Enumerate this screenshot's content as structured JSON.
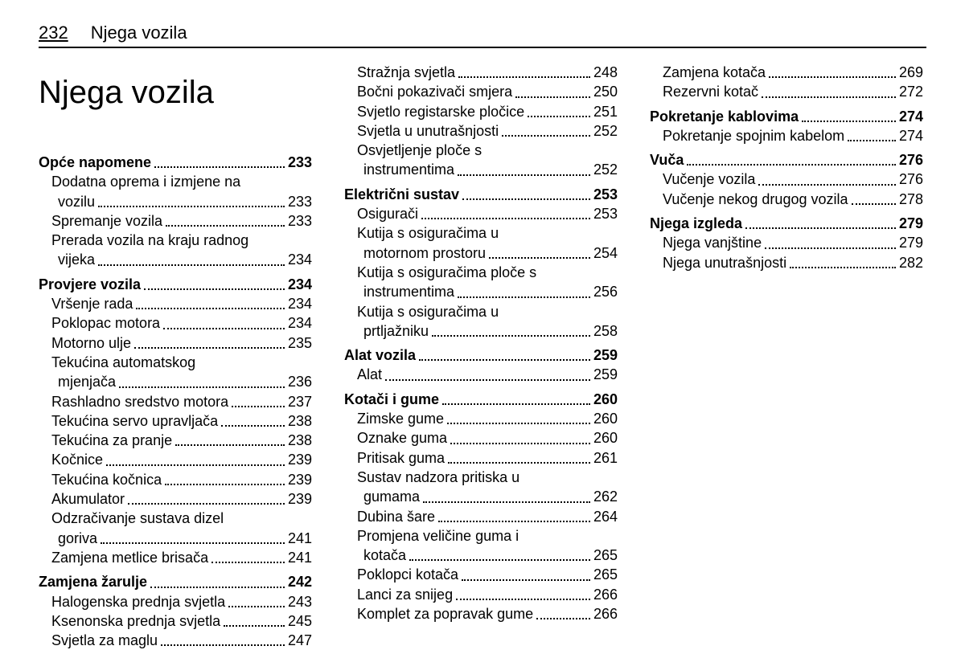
{
  "header": {
    "page_number": "232",
    "section_name": "Njega vozila"
  },
  "chapter_title": "Njega vozila",
  "columns": [
    [
      {
        "label": "Opće napomene",
        "page": "233",
        "bold": true,
        "indent": 0,
        "wrap": null
      },
      {
        "label": "Dodatna oprema i izmjene na",
        "page": null,
        "bold": false,
        "indent": 1,
        "wrap": null
      },
      {
        "label": "vozilu",
        "page": "233",
        "bold": false,
        "indent": 2,
        "wrap": null
      },
      {
        "label": "Spremanje vozila",
        "page": "233",
        "bold": false,
        "indent": 1,
        "wrap": null
      },
      {
        "label": "Prerada vozila na kraju radnog",
        "page": null,
        "bold": false,
        "indent": 1,
        "wrap": null
      },
      {
        "label": "vijeka",
        "page": "234",
        "bold": false,
        "indent": 2,
        "wrap": null
      },
      {
        "label": "Provjere vozila",
        "page": "234",
        "bold": true,
        "indent": 0,
        "wrap": null
      },
      {
        "label": "Vršenje rada",
        "page": "234",
        "bold": false,
        "indent": 1,
        "wrap": null
      },
      {
        "label": "Poklopac motora",
        "page": "234",
        "bold": false,
        "indent": 1,
        "wrap": null
      },
      {
        "label": "Motorno ulje",
        "page": "235",
        "bold": false,
        "indent": 1,
        "wrap": null
      },
      {
        "label": "Tekućina automatskog",
        "page": null,
        "bold": false,
        "indent": 1,
        "wrap": null
      },
      {
        "label": "mjenjača",
        "page": "236",
        "bold": false,
        "indent": 2,
        "wrap": null
      },
      {
        "label": "Rashladno sredstvo motora",
        "page": "237",
        "bold": false,
        "indent": 1,
        "wrap": null
      },
      {
        "label": "Tekućina servo upravljača",
        "page": "238",
        "bold": false,
        "indent": 1,
        "wrap": null
      },
      {
        "label": "Tekućina za pranje",
        "page": "238",
        "bold": false,
        "indent": 1,
        "wrap": null
      },
      {
        "label": "Kočnice",
        "page": "239",
        "bold": false,
        "indent": 1,
        "wrap": null
      },
      {
        "label": "Tekućina kočnica",
        "page": "239",
        "bold": false,
        "indent": 1,
        "wrap": null
      },
      {
        "label": "Akumulator",
        "page": "239",
        "bold": false,
        "indent": 1,
        "wrap": null
      },
      {
        "label": "Odzračivanje sustava dizel",
        "page": null,
        "bold": false,
        "indent": 1,
        "wrap": null
      },
      {
        "label": "goriva",
        "page": "241",
        "bold": false,
        "indent": 2,
        "wrap": null
      },
      {
        "label": "Zamjena metlice brisača",
        "page": "241",
        "bold": false,
        "indent": 1,
        "wrap": null
      },
      {
        "label": "Zamjena žarulje",
        "page": "242",
        "bold": true,
        "indent": 0,
        "wrap": null
      },
      {
        "label": "Halogenska prednja svjetla",
        "page": "243",
        "bold": false,
        "indent": 1,
        "wrap": null
      },
      {
        "label": "Ksenonska prednja svjetla",
        "page": "245",
        "bold": false,
        "indent": 1,
        "wrap": null
      },
      {
        "label": "Svjetla za maglu",
        "page": "247",
        "bold": false,
        "indent": 1,
        "wrap": null
      }
    ],
    [
      {
        "label": "Stražnja svjetla",
        "page": "248",
        "bold": false,
        "indent": 1,
        "wrap": null
      },
      {
        "label": "Bočni pokazivači smjera",
        "page": "250",
        "bold": false,
        "indent": 1,
        "wrap": null
      },
      {
        "label": "Svjetlo registarske pločice",
        "page": "251",
        "bold": false,
        "indent": 1,
        "wrap": null
      },
      {
        "label": "Svjetla u unutrašnjosti",
        "page": "252",
        "bold": false,
        "indent": 1,
        "wrap": null
      },
      {
        "label": "Osvjetljenje ploče s",
        "page": null,
        "bold": false,
        "indent": 1,
        "wrap": null
      },
      {
        "label": "instrumentima",
        "page": "252",
        "bold": false,
        "indent": 2,
        "wrap": null
      },
      {
        "label": "Električni sustav",
        "page": "253",
        "bold": true,
        "indent": 0,
        "wrap": null
      },
      {
        "label": "Osigurači",
        "page": "253",
        "bold": false,
        "indent": 1,
        "wrap": null
      },
      {
        "label": "Kutija s osiguračima u",
        "page": null,
        "bold": false,
        "indent": 1,
        "wrap": null
      },
      {
        "label": "motornom prostoru",
        "page": "254",
        "bold": false,
        "indent": 2,
        "wrap": null
      },
      {
        "label": "Kutija s osiguračima ploče s",
        "page": null,
        "bold": false,
        "indent": 1,
        "wrap": null
      },
      {
        "label": "instrumentima",
        "page": "256",
        "bold": false,
        "indent": 2,
        "wrap": null
      },
      {
        "label": "Kutija s osiguračima u",
        "page": null,
        "bold": false,
        "indent": 1,
        "wrap": null
      },
      {
        "label": "prtljažniku",
        "page": "258",
        "bold": false,
        "indent": 2,
        "wrap": null
      },
      {
        "label": "Alat vozila",
        "page": "259",
        "bold": true,
        "indent": 0,
        "wrap": null
      },
      {
        "label": "Alat",
        "page": "259",
        "bold": false,
        "indent": 1,
        "wrap": null
      },
      {
        "label": "Kotači i gume",
        "page": "260",
        "bold": true,
        "indent": 0,
        "wrap": null
      },
      {
        "label": "Zimske gume",
        "page": "260",
        "bold": false,
        "indent": 1,
        "wrap": null
      },
      {
        "label": "Oznake guma",
        "page": "260",
        "bold": false,
        "indent": 1,
        "wrap": null
      },
      {
        "label": "Pritisak guma",
        "page": "261",
        "bold": false,
        "indent": 1,
        "wrap": null
      },
      {
        "label": "Sustav nadzora pritiska u",
        "page": null,
        "bold": false,
        "indent": 1,
        "wrap": null
      },
      {
        "label": "gumama",
        "page": "262",
        "bold": false,
        "indent": 2,
        "wrap": null
      },
      {
        "label": "Dubina šare",
        "page": "264",
        "bold": false,
        "indent": 1,
        "wrap": null
      },
      {
        "label": "Promjena veličine guma i",
        "page": null,
        "bold": false,
        "indent": 1,
        "wrap": null
      },
      {
        "label": "kotača",
        "page": "265",
        "bold": false,
        "indent": 2,
        "wrap": null
      },
      {
        "label": "Poklopci kotača",
        "page": "265",
        "bold": false,
        "indent": 1,
        "wrap": null
      },
      {
        "label": "Lanci za snijeg",
        "page": "266",
        "bold": false,
        "indent": 1,
        "wrap": null
      },
      {
        "label": "Komplet za popravak gume",
        "page": "266",
        "bold": false,
        "indent": 1,
        "wrap": null
      }
    ],
    [
      {
        "label": "Zamjena kotača",
        "page": "269",
        "bold": false,
        "indent": 1,
        "wrap": null
      },
      {
        "label": "Rezervni kotač",
        "page": "272",
        "bold": false,
        "indent": 1,
        "wrap": null
      },
      {
        "label": "Pokretanje kablovima",
        "page": "274",
        "bold": true,
        "indent": 0,
        "wrap": null
      },
      {
        "label": "Pokretanje spojnim kabelom",
        "page": "274",
        "bold": false,
        "indent": 1,
        "wrap": null
      },
      {
        "label": "Vuča",
        "page": "276",
        "bold": true,
        "indent": 0,
        "wrap": null
      },
      {
        "label": "Vučenje vozila",
        "page": "276",
        "bold": false,
        "indent": 1,
        "wrap": null
      },
      {
        "label": "Vučenje nekog drugog vozila",
        "page": "278",
        "bold": false,
        "indent": 1,
        "wrap": null
      },
      {
        "label": "Njega izgleda",
        "page": "279",
        "bold": true,
        "indent": 0,
        "wrap": null
      },
      {
        "label": "Njega vanjštine",
        "page": "279",
        "bold": false,
        "indent": 1,
        "wrap": null
      },
      {
        "label": "Njega unutrašnjosti",
        "page": "282",
        "bold": false,
        "indent": 1,
        "wrap": null
      }
    ]
  ]
}
